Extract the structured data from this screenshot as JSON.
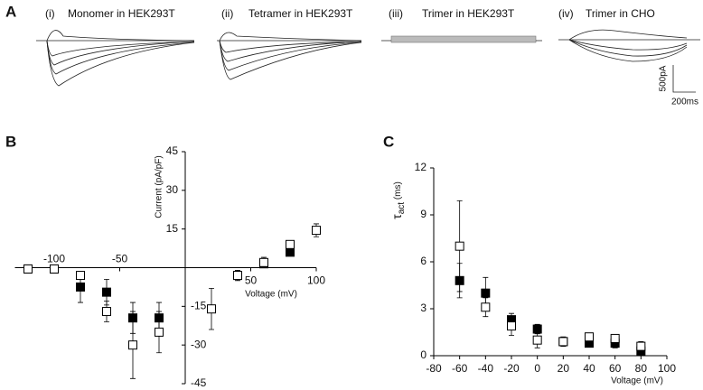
{
  "panel_labels": [
    "A",
    "B",
    "C"
  ],
  "panel_a": {
    "traces": [
      {
        "index": "(i)",
        "title": "Monomer in HEK293T"
      },
      {
        "index": "(ii)",
        "title": "Tetramer in HEK293T"
      },
      {
        "index": "(iii)",
        "title": "Trimer in HEK293T"
      },
      {
        "index": "(iv)",
        "title": "Trimer in CHO"
      }
    ],
    "scale_bar": {
      "current": "500pA",
      "time": "200ms"
    }
  },
  "chart_data": [
    {
      "type": "scatter",
      "y_label": "Current (pA/pF)",
      "x_label": "Voltage (mV)",
      "x": [
        -120,
        -100,
        -80,
        -60,
        -40,
        -20,
        20,
        40,
        60,
        80,
        100
      ],
      "series": [
        {
          "color": "#000000",
          "fill": "#000000",
          "values": [
            -0.5,
            -0.5,
            -7.5,
            -9.5,
            -19.5,
            -19.5,
            null,
            -3,
            1.5,
            6,
            null
          ],
          "errors": [
            0.5,
            0.5,
            6,
            5,
            6,
            6,
            null,
            2,
            1,
            1,
            null
          ]
        },
        {
          "color": "#000000",
          "fill": "#ffffff",
          "values": [
            -0.5,
            -0.5,
            -3,
            -17,
            -30,
            -25,
            -16,
            -3,
            2,
            9,
            14.5
          ],
          "errors": [
            0.5,
            0.5,
            1.5,
            4,
            13,
            8,
            8,
            2,
            2,
            1,
            2.5
          ]
        }
      ],
      "xlim": [
        -130,
        100
      ],
      "xticks": [
        -100,
        -50,
        50,
        100
      ],
      "ylim": [
        -45,
        45
      ],
      "yticks": [
        45,
        30,
        15,
        -15,
        -30,
        -45
      ]
    },
    {
      "type": "scatter",
      "y_label": {
        "symbol": "τ",
        "subscript": "act",
        "unit": " (ms)"
      },
      "x_label": "Voltage (mV)",
      "x": [
        -60,
        -40,
        -20,
        0,
        20,
        40,
        60,
        80
      ],
      "series": [
        {
          "color": "#000000",
          "fill": "#000000",
          "values": [
            4.8,
            4.0,
            2.3,
            1.7,
            0.9,
            0.8,
            0.8,
            0.3
          ],
          "errors": [
            1.1,
            1.0,
            0.4,
            0.3,
            0.2,
            0.1,
            0.3,
            0.2
          ]
        },
        {
          "color": "#000000",
          "fill": "#ffffff",
          "values": [
            7.0,
            3.1,
            1.9,
            1.0,
            0.9,
            1.2,
            1.1,
            0.6
          ],
          "errors": [
            2.9,
            0.6,
            0.6,
            0.5,
            0.3,
            0.2,
            0.2,
            0.3
          ]
        }
      ],
      "xlim": [
        -80,
        100
      ],
      "xticks": [
        -80,
        -60,
        -40,
        -20,
        0,
        20,
        40,
        60,
        80,
        100
      ],
      "ylim": [
        0,
        12
      ],
      "yticks": [
        0,
        3,
        6,
        9,
        12
      ]
    }
  ]
}
